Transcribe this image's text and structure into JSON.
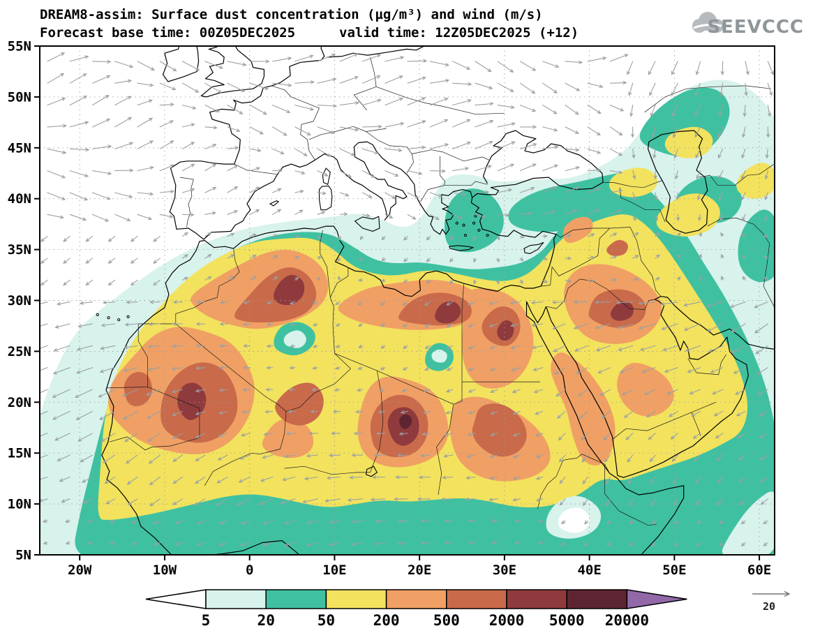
{
  "header": {
    "title": "DREAM8-assim: Surface dust concentration (µg/m³) and wind (m/s)",
    "base_time": "Forecast base time: 00Z05DEC2025",
    "valid_time": "valid time: 12Z05DEC2025 (+12)",
    "logo_text": "SEEVCCC"
  },
  "axes": {
    "x_ticks": [
      {
        "label": "20W",
        "lon": -20
      },
      {
        "label": "10W",
        "lon": -10
      },
      {
        "label": "0",
        "lon": 0
      },
      {
        "label": "10E",
        "lon": 10
      },
      {
        "label": "20E",
        "lon": 20
      },
      {
        "label": "30E",
        "lon": 30
      },
      {
        "label": "40E",
        "lon": 40
      },
      {
        "label": "50E",
        "lon": 50
      },
      {
        "label": "60E",
        "lon": 60
      }
    ],
    "y_ticks": [
      {
        "label": "5N",
        "lat": 5
      },
      {
        "label": "10N",
        "lat": 10
      },
      {
        "label": "15N",
        "lat": 15
      },
      {
        "label": "20N",
        "lat": 20
      },
      {
        "label": "25N",
        "lat": 25
      },
      {
        "label": "30N",
        "lat": 30
      },
      {
        "label": "35N",
        "lat": 35
      },
      {
        "label": "40N",
        "lat": 40
      },
      {
        "label": "45N",
        "lat": 45
      },
      {
        "label": "50N",
        "lat": 50
      },
      {
        "label": "55N",
        "lat": 55
      }
    ]
  },
  "colorbar": {
    "levels": [
      "5",
      "20",
      "50",
      "200",
      "500",
      "2000",
      "5000",
      "20000"
    ],
    "colors": [
      "#ffffff",
      "#d8f2ec",
      "#3fc1a1",
      "#f2e25e",
      "#f0a064",
      "#c96a4a",
      "#8f3a3c",
      "#5d2531",
      "#9268a8"
    ]
  },
  "wind_reference": {
    "label": "20"
  },
  "style": {
    "coast": "#000000",
    "border": "#1a1a1a",
    "grid": "#9e9e9e",
    "wind": "#9aa0a4",
    "logo_color": "#8f969a",
    "cloud_color": "#b7bbbe"
  }
}
